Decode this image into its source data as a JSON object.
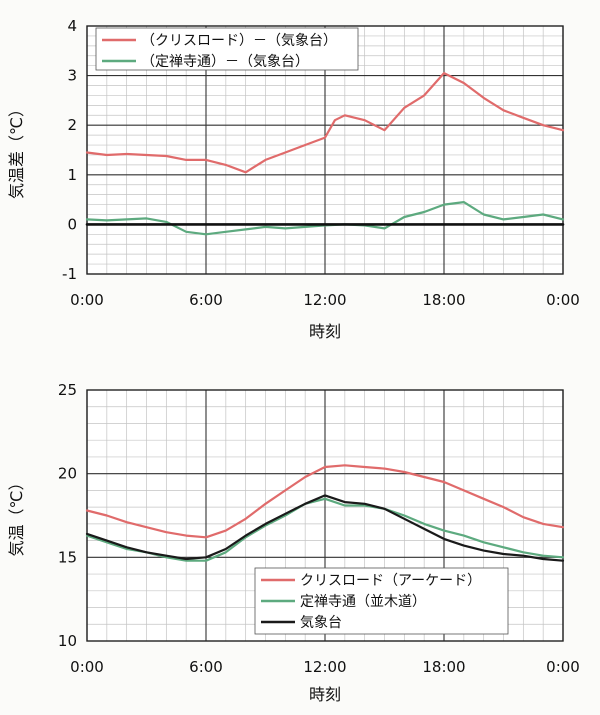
{
  "charts": [
    {
      "type": "line",
      "title": "",
      "xlabel": "時刻",
      "ylabel": "気温差（℃）",
      "xlim": [
        0,
        24
      ],
      "ylim": [
        -1,
        4
      ],
      "x_ticks": [
        "0:00",
        "6:00",
        "12:00",
        "18:00",
        "0:00"
      ],
      "y_ticks": [
        "-1",
        "0",
        "1",
        "2",
        "3",
        "4"
      ],
      "legend": "top-left",
      "grid": true,
      "series": [
        {
          "name": "（クリスロード）－（気象台）",
          "color": "#e06b6b",
          "x": [
            0,
            1,
            2,
            3,
            4,
            5,
            6,
            7,
            8,
            9,
            10,
            11,
            12,
            12.5,
            13,
            14,
            15,
            16,
            17,
            18,
            19,
            20,
            21,
            22,
            23,
            24
          ],
          "y": [
            1.45,
            1.4,
            1.42,
            1.4,
            1.38,
            1.3,
            1.3,
            1.2,
            1.05,
            1.3,
            1.45,
            1.6,
            1.75,
            2.1,
            2.2,
            2.1,
            1.9,
            2.35,
            2.6,
            3.05,
            2.85,
            2.55,
            2.3,
            2.15,
            2.0,
            1.9
          ]
        },
        {
          "name": "（定禅寺通）－（気象台）",
          "color": "#5daa7f",
          "x": [
            0,
            1,
            2,
            3,
            4,
            5,
            6,
            7,
            8,
            9,
            10,
            11,
            12,
            13,
            14,
            15,
            16,
            17,
            18,
            19,
            20,
            21,
            22,
            23,
            24
          ],
          "y": [
            0.1,
            0.08,
            0.1,
            0.12,
            0.05,
            -0.15,
            -0.2,
            -0.15,
            -0.1,
            -0.05,
            -0.08,
            -0.05,
            -0.02,
            0.0,
            -0.02,
            -0.08,
            0.15,
            0.25,
            0.4,
            0.45,
            0.2,
            0.1,
            0.15,
            0.2,
            0.1
          ]
        },
        {
          "name": "",
          "color": "#111111",
          "x": [
            0,
            24
          ],
          "y": [
            0,
            0
          ]
        }
      ]
    },
    {
      "type": "line",
      "title": "",
      "xlabel": "時刻",
      "ylabel": "気温（℃）",
      "xlim": [
        0,
        24
      ],
      "ylim": [
        10,
        25
      ],
      "x_ticks": [
        "0:00",
        "6:00",
        "12:00",
        "18:00",
        "0:00"
      ],
      "y_ticks": [
        "10",
        "15",
        "20",
        "25"
      ],
      "legend": "bottom-right",
      "grid": true,
      "series": [
        {
          "name": "クリスロード（アーケード）",
          "color": "#e06b6b",
          "x": [
            0,
            1,
            2,
            3,
            4,
            5,
            6,
            7,
            8,
            9,
            10,
            11,
            12,
            13,
            14,
            15,
            16,
            17,
            18,
            19,
            20,
            21,
            22,
            23,
            24
          ],
          "y": [
            17.8,
            17.5,
            17.1,
            16.8,
            16.5,
            16.3,
            16.2,
            16.6,
            17.3,
            18.2,
            19.0,
            19.8,
            20.4,
            20.5,
            20.4,
            20.3,
            20.1,
            19.8,
            19.5,
            19.0,
            18.5,
            18.0,
            17.4,
            17.0,
            16.8
          ]
        },
        {
          "name": "定禅寺通（並木道）",
          "color": "#5daa7f",
          "x": [
            0,
            1,
            2,
            3,
            4,
            5,
            6,
            7,
            8,
            9,
            10,
            11,
            12,
            13,
            14,
            15,
            16,
            17,
            18,
            19,
            20,
            21,
            22,
            23,
            24
          ],
          "y": [
            16.3,
            15.9,
            15.5,
            15.3,
            15.0,
            14.8,
            14.8,
            15.3,
            16.2,
            16.9,
            17.5,
            18.2,
            18.5,
            18.1,
            18.1,
            17.9,
            17.5,
            17.0,
            16.6,
            16.3,
            15.9,
            15.6,
            15.3,
            15.1,
            15.0
          ]
        },
        {
          "name": "気象台",
          "color": "#1a1a1a",
          "x": [
            0,
            1,
            2,
            3,
            4,
            5,
            6,
            7,
            8,
            9,
            10,
            11,
            12,
            13,
            14,
            15,
            16,
            17,
            18,
            19,
            20,
            21,
            22,
            23,
            24
          ],
          "y": [
            16.4,
            16.0,
            15.6,
            15.3,
            15.1,
            14.9,
            15.0,
            15.5,
            16.3,
            17.0,
            17.6,
            18.2,
            18.7,
            18.3,
            18.2,
            17.9,
            17.3,
            16.7,
            16.1,
            15.7,
            15.4,
            15.2,
            15.1,
            14.9,
            14.8
          ]
        }
      ]
    }
  ]
}
